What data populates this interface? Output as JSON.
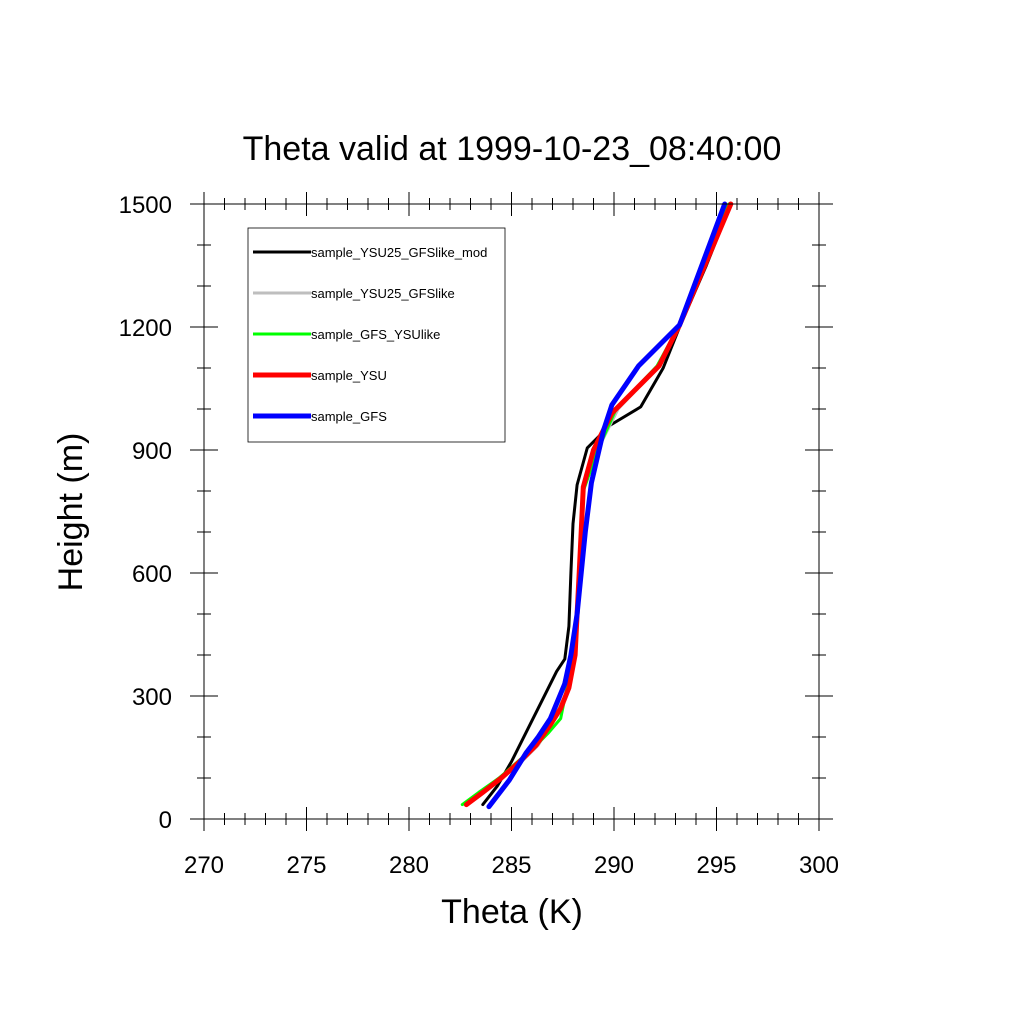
{
  "chart_data": {
    "type": "line",
    "title": "Theta valid at 1999-10-23_08:40:00",
    "xlabel": "Theta (K)",
    "ylabel": "Height (m)",
    "xlim": [
      270,
      300
    ],
    "ylim": [
      0,
      1500
    ],
    "xticks": [
      270,
      275,
      280,
      285,
      290,
      295,
      300
    ],
    "yticks": [
      0,
      300,
      600,
      900,
      1200,
      1500
    ],
    "grid": false,
    "legend_position": "top-left",
    "series": [
      {
        "name": "sample_YSU25_GFSlike_mod",
        "color": "#000000",
        "points": [
          [
            283.6,
            35
          ],
          [
            284.3,
            80
          ],
          [
            285,
            140
          ],
          [
            285.8,
            220
          ],
          [
            286.5,
            290
          ],
          [
            287.2,
            360
          ],
          [
            287.6,
            390
          ],
          [
            287.8,
            470
          ],
          [
            287.9,
            600
          ],
          [
            288,
            720
          ],
          [
            288.2,
            815
          ],
          [
            288.7,
            905
          ],
          [
            289.8,
            960
          ],
          [
            291.3,
            1005
          ],
          [
            292.4,
            1100
          ],
          [
            293.2,
            1200
          ],
          [
            294.5,
            1350
          ],
          [
            295.7,
            1500
          ]
        ]
      },
      {
        "name": "sample_YSU25_GFSlike",
        "color": "#bebebe",
        "points": [
          [
            282.7,
            35
          ],
          [
            283.6,
            70
          ],
          [
            284.5,
            105
          ],
          [
            285.5,
            140
          ],
          [
            286.3,
            180
          ],
          [
            286.9,
            230
          ],
          [
            287.3,
            280
          ],
          [
            287.6,
            340
          ],
          [
            288,
            400
          ],
          [
            288.2,
            500
          ],
          [
            288.3,
            600
          ],
          [
            288.4,
            700
          ],
          [
            288.5,
            800
          ],
          [
            289.2,
            900
          ],
          [
            290.2,
            1000
          ],
          [
            292.2,
            1105
          ],
          [
            293.2,
            1205
          ],
          [
            295.6,
            1500
          ]
        ]
      },
      {
        "name": "sample_GFS_YSUlike",
        "color": "#00ff00",
        "points": [
          [
            282.6,
            35
          ],
          [
            283.4,
            65
          ],
          [
            284.4,
            100
          ],
          [
            285.3,
            140
          ],
          [
            286.1,
            175
          ],
          [
            286.8,
            210
          ],
          [
            287.4,
            245
          ],
          [
            287.7,
            320
          ],
          [
            288,
            400
          ],
          [
            288.2,
            500
          ],
          [
            288.3,
            600
          ],
          [
            288.4,
            700
          ],
          [
            288.5,
            800
          ],
          [
            289.2,
            900
          ],
          [
            290.1,
            1000
          ],
          [
            292.1,
            1105
          ],
          [
            293.2,
            1205
          ],
          [
            295.6,
            1500
          ]
        ]
      },
      {
        "name": "sample_YSU",
        "color": "#ff0000",
        "points": [
          [
            282.8,
            35
          ],
          [
            283.6,
            65
          ],
          [
            284.5,
            100
          ],
          [
            285.4,
            140
          ],
          [
            286.2,
            180
          ],
          [
            286.9,
            230
          ],
          [
            287.4,
            270
          ],
          [
            287.8,
            320
          ],
          [
            288.1,
            400
          ],
          [
            288.2,
            500
          ],
          [
            288.3,
            600
          ],
          [
            288.4,
            700
          ],
          [
            288.5,
            810
          ],
          [
            289,
            900
          ],
          [
            289.9,
            990
          ],
          [
            292.2,
            1105
          ],
          [
            293.2,
            1205
          ],
          [
            295.7,
            1500
          ]
        ]
      },
      {
        "name": "sample_GFS",
        "color": "#0000ff",
        "points": [
          [
            283.9,
            30
          ],
          [
            284.9,
            95
          ],
          [
            285.7,
            160
          ],
          [
            286.3,
            200
          ],
          [
            286.9,
            245
          ],
          [
            287.6,
            330
          ],
          [
            287.9,
            400
          ],
          [
            288.2,
            500
          ],
          [
            288.4,
            600
          ],
          [
            288.6,
            700
          ],
          [
            288.9,
            820
          ],
          [
            289.5,
            950
          ],
          [
            289.9,
            1010
          ],
          [
            291.2,
            1105
          ],
          [
            293.2,
            1205
          ],
          [
            295.4,
            1500
          ]
        ]
      }
    ]
  }
}
